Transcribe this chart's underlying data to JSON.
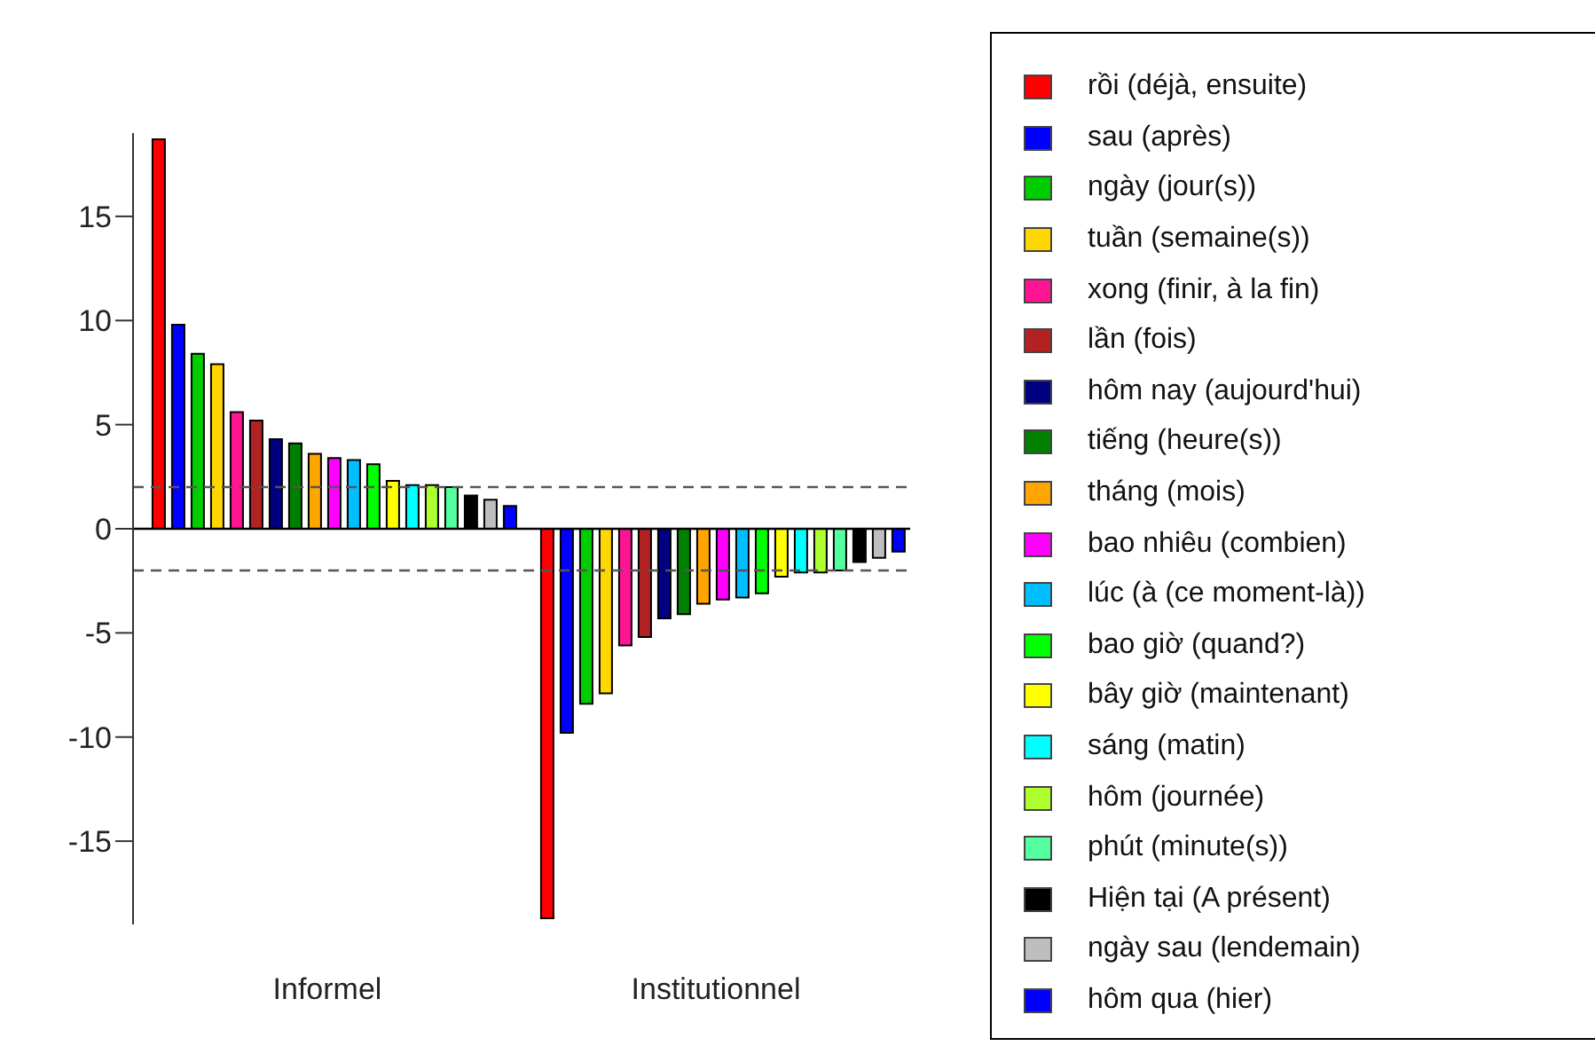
{
  "chart_data": {
    "type": "bar",
    "categories": [
      "Informel",
      "Institutionnel"
    ],
    "ylim": [
      -19,
      19
    ],
    "yticks": [
      -15,
      -10,
      -5,
      0,
      5,
      10,
      15
    ],
    "grid": false,
    "legend": "right",
    "ref_lines": [
      {
        "axis": "y",
        "value": 0,
        "line_style": "solid",
        "color": "#000000"
      },
      {
        "axis": "y",
        "value": 2,
        "line_style": "dashed",
        "color": "#555555"
      },
      {
        "axis": "y",
        "value": -2,
        "line_style": "dashed",
        "color": "#555555"
      }
    ],
    "series": [
      {
        "name": "rồi (déjà, ensuite)",
        "color": "#ff0000",
        "values": [
          18.7,
          -18.7
        ]
      },
      {
        "name": "sau (après)",
        "color": "#0000ff",
        "values": [
          9.8,
          -9.8
        ]
      },
      {
        "name": "ngày (jour(s))",
        "color": "#00cd00",
        "values": [
          8.4,
          -8.4
        ]
      },
      {
        "name": "tuần (semaine(s))",
        "color": "#ffd700",
        "values": [
          7.9,
          -7.9
        ]
      },
      {
        "name": "xong (finir, à la fin)",
        "color": "#ff1493",
        "values": [
          5.6,
          -5.6
        ]
      },
      {
        "name": "lần (fois)",
        "color": "#b22222",
        "values": [
          5.2,
          -5.2
        ]
      },
      {
        "name": "hôm nay (aujourd'hui)",
        "color": "#000080",
        "values": [
          4.3,
          -4.3
        ]
      },
      {
        "name": "tiếng (heure(s))",
        "color": "#008000",
        "values": [
          4.1,
          -4.1
        ]
      },
      {
        "name": "tháng (mois)",
        "color": "#ffa500",
        "values": [
          3.6,
          -3.6
        ]
      },
      {
        "name": "bao nhiêu (combien)",
        "color": "#ff00ff",
        "values": [
          3.4,
          -3.4
        ]
      },
      {
        "name": "lúc (à (ce moment-là))",
        "color": "#00bfff",
        "values": [
          3.3,
          -3.3
        ]
      },
      {
        "name": "bao giờ (quand?)",
        "color": "#00ff00",
        "values": [
          3.1,
          -3.1
        ]
      },
      {
        "name": "bây giờ (maintenant)",
        "color": "#ffff00",
        "values": [
          2.3,
          -2.3
        ]
      },
      {
        "name": "sáng (matin)",
        "color": "#00ffff",
        "values": [
          2.1,
          -2.1
        ]
      },
      {
        "name": "hôm (journée)",
        "color": "#adff2f",
        "values": [
          2.1,
          -2.1
        ]
      },
      {
        "name": "phút (minute(s))",
        "color": "#54ff9f",
        "values": [
          2.0,
          -2.0
        ]
      },
      {
        "name": "Hiện tại (A présent)",
        "color": "#000000",
        "values": [
          1.6,
          -1.6
        ]
      },
      {
        "name": "ngày sau (lendemain)",
        "color": "#bebebe",
        "values": [
          1.4,
          -1.4
        ]
      },
      {
        "name": "hôm qua (hier)",
        "color": "#0000ff",
        "values": [
          1.1,
          -1.1
        ]
      }
    ]
  }
}
